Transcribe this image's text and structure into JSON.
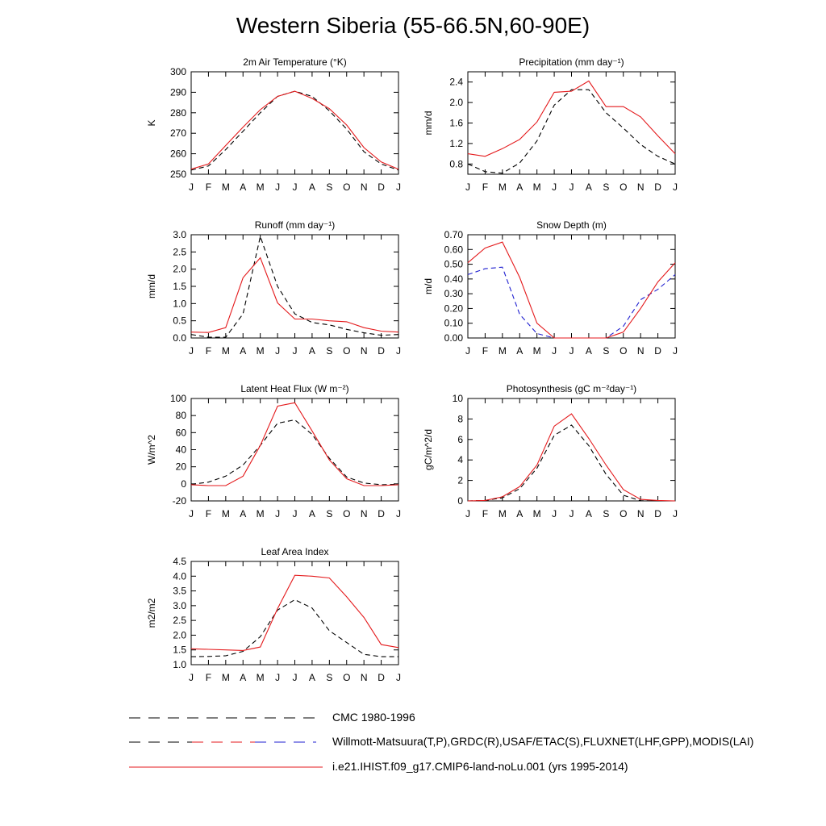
{
  "title": "Western Siberia (55-66.5N,60-90E)",
  "months": [
    "J",
    "F",
    "M",
    "A",
    "M",
    "J",
    "J",
    "A",
    "S",
    "O",
    "N",
    "D",
    "J"
  ],
  "colors": {
    "model": "#e41a1c",
    "obs_black": "#000000",
    "obs_blue": "#1f1fd0"
  },
  "legend": [
    {
      "label": "CMC 1980-1996",
      "style": "dashed",
      "color": "#000000"
    },
    {
      "label": "Willmott-Matsuura(T,P),GRDC(R),USAF/ETAC(S),FLUXNET(LHF,GPP),MODIS(LAI)",
      "style": "dashed",
      "color": "#000000"
    },
    {
      "label": "i.e21.IHIST.f09_g17.CMIP6-land-noLu.001 (yrs 1995-2014)",
      "style": "solid",
      "color": "#e41a1c"
    }
  ],
  "chart_data": [
    {
      "type": "line",
      "title": "2m Air Temperature (°K)",
      "ylabel": "K",
      "ylim": [
        250,
        300
      ],
      "yticks": [
        "250",
        "260",
        "270",
        "280",
        "290",
        "300"
      ],
      "series": [
        {
          "style": "dashed",
          "color": "#000000",
          "values": [
            252,
            254,
            262,
            271,
            280,
            288,
            290.5,
            288,
            281,
            272,
            261,
            255,
            252
          ]
        },
        {
          "style": "solid",
          "color": "#e41a1c",
          "values": [
            252.5,
            255,
            264,
            273,
            281.5,
            288,
            290.5,
            287,
            282,
            274,
            263,
            256,
            252.5
          ]
        }
      ]
    },
    {
      "type": "line",
      "title": "Precipitation (mm day⁻¹)",
      "ylabel": "mm/d",
      "ylim": [
        0.6,
        2.6
      ],
      "yticks": [
        "0.8",
        "1.2",
        "1.6",
        "2.0",
        "2.4"
      ],
      "series": [
        {
          "style": "dashed",
          "color": "#000000",
          "values": [
            0.8,
            0.65,
            0.62,
            0.82,
            1.25,
            1.95,
            2.25,
            2.25,
            1.8,
            1.5,
            1.18,
            0.95,
            0.8
          ]
        },
        {
          "style": "solid",
          "color": "#e41a1c",
          "values": [
            1.0,
            0.95,
            1.1,
            1.28,
            1.62,
            2.2,
            2.22,
            2.42,
            1.92,
            1.92,
            1.72,
            1.35,
            1.0
          ]
        }
      ]
    },
    {
      "type": "line",
      "title": "Runoff (mm day⁻¹)",
      "ylabel": "mm/d",
      "ylim": [
        0,
        3.0
      ],
      "yticks": [
        "0.0",
        "0.5",
        "1.0",
        "1.5",
        "2.0",
        "2.5",
        "3.0"
      ],
      "series": [
        {
          "style": "dashed",
          "color": "#000000",
          "values": [
            0.1,
            0.02,
            0.02,
            0.7,
            2.95,
            1.5,
            0.7,
            0.45,
            0.38,
            0.25,
            0.15,
            0.08,
            0.1
          ]
        },
        {
          "style": "solid",
          "color": "#e41a1c",
          "values": [
            0.17,
            0.16,
            0.3,
            1.75,
            2.33,
            1.02,
            0.55,
            0.55,
            0.5,
            0.47,
            0.3,
            0.2,
            0.17
          ]
        }
      ]
    },
    {
      "type": "line",
      "title": "Snow Depth (m)",
      "ylabel": "m/d",
      "ylim": [
        0,
        0.7
      ],
      "yticks": [
        "0.00",
        "0.10",
        "0.20",
        "0.30",
        "0.40",
        "0.50",
        "0.60",
        "0.70"
      ],
      "series": [
        {
          "style": "dashed",
          "color": "#000000",
          "values": [
            0,
            0,
            0,
            0,
            0,
            0,
            0,
            0,
            0,
            0,
            0,
            0,
            0
          ]
        },
        {
          "style": "dashed",
          "color": "#1f1fd0",
          "values": [
            0.43,
            0.47,
            0.48,
            0.16,
            0.03,
            0.0,
            0.0,
            0.0,
            0.0,
            0.08,
            0.26,
            0.33,
            0.43
          ]
        },
        {
          "style": "solid",
          "color": "#e41a1c",
          "values": [
            0.51,
            0.61,
            0.65,
            0.41,
            0.1,
            0.0,
            0.0,
            0.0,
            0.0,
            0.04,
            0.2,
            0.38,
            0.51
          ]
        }
      ]
    },
    {
      "type": "line",
      "title": "Latent Heat Flux (W m⁻²)",
      "ylabel": "W/m^2",
      "ylim": [
        -20,
        100
      ],
      "yticks": [
        "-20",
        "0",
        "20",
        "40",
        "60",
        "80",
        "100"
      ],
      "series": [
        {
          "style": "dashed",
          "color": "#000000",
          "values": [
            -0.5,
            2,
            9,
            22,
            45,
            71,
            75,
            58,
            30,
            8,
            1,
            -1,
            -0.5
          ]
        },
        {
          "style": "solid",
          "color": "#e41a1c",
          "values": [
            -1,
            -2,
            -2,
            9,
            45,
            91,
            95,
            62,
            28,
            6,
            -2,
            -2,
            -1
          ]
        }
      ]
    },
    {
      "type": "line",
      "title": "Photosynthesis (gC m⁻²day⁻¹)",
      "ylabel": "gC/m^2/d",
      "ylim": [
        0,
        10
      ],
      "yticks": [
        "0",
        "2",
        "4",
        "6",
        "8",
        "10"
      ],
      "series": [
        {
          "style": "dashed",
          "color": "#000000",
          "values": [
            0,
            0.05,
            0.3,
            1.2,
            3.2,
            6.4,
            7.4,
            5.4,
            2.6,
            0.55,
            0.02,
            0,
            0
          ]
        },
        {
          "style": "solid",
          "color": "#e41a1c",
          "values": [
            0,
            0.05,
            0.4,
            1.4,
            3.5,
            7.3,
            8.5,
            6.1,
            3.5,
            1.1,
            0.15,
            0.05,
            0
          ]
        }
      ]
    },
    {
      "type": "line",
      "title": "Leaf Area Index",
      "ylabel": "m2/m2",
      "ylim": [
        1.0,
        4.5
      ],
      "yticks": [
        "1.0",
        "1.5",
        "2.0",
        "2.5",
        "3.0",
        "3.5",
        "4.0",
        "4.5"
      ],
      "series": [
        {
          "style": "dashed",
          "color": "#000000",
          "values": [
            1.27,
            1.28,
            1.3,
            1.45,
            1.95,
            2.85,
            3.2,
            2.92,
            2.15,
            1.75,
            1.35,
            1.27,
            1.27
          ]
        },
        {
          "style": "solid",
          "color": "#e41a1c",
          "values": [
            1.54,
            1.52,
            1.5,
            1.48,
            1.6,
            2.9,
            4.03,
            4.0,
            3.94,
            3.3,
            2.6,
            1.68,
            1.58
          ]
        }
      ]
    }
  ]
}
